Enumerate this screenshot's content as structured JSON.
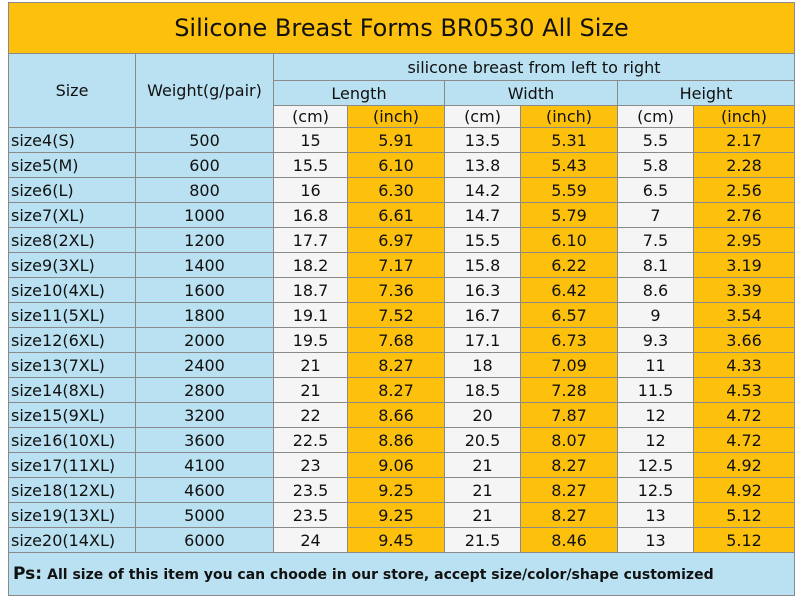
{
  "title": "Silicone Breast Forms BR0530 All Size",
  "header": {
    "size": "Size",
    "weight": "Weight(g/pair)",
    "group": "silicone breast from left to right",
    "dimensions": [
      "Length",
      "Width",
      "Height"
    ],
    "units": [
      "(cm)",
      "(inch)",
      "(cm)",
      "(inch)",
      "(cm)",
      "(inch)"
    ]
  },
  "table": {
    "rows": [
      [
        "size4(S)",
        "500",
        "15",
        "5.91",
        "13.5",
        "5.31",
        "5.5",
        "2.17"
      ],
      [
        "size5(M)",
        "600",
        "15.5",
        "6.10",
        "13.8",
        "5.43",
        "5.8",
        "2.28"
      ],
      [
        "size6(L)",
        "800",
        "16",
        "6.30",
        "14.2",
        "5.59",
        "6.5",
        "2.56"
      ],
      [
        "size7(XL)",
        "1000",
        "16.8",
        "6.61",
        "14.7",
        "5.79",
        "7",
        "2.76"
      ],
      [
        "size8(2XL)",
        "1200",
        "17.7",
        "6.97",
        "15.5",
        "6.10",
        "7.5",
        "2.95"
      ],
      [
        "size9(3XL)",
        "1400",
        "18.2",
        "7.17",
        "15.8",
        "6.22",
        "8.1",
        "3.19"
      ],
      [
        "size10(4XL)",
        "1600",
        "18.7",
        "7.36",
        "16.3",
        "6.42",
        "8.6",
        "3.39"
      ],
      [
        "size11(5XL)",
        "1800",
        "19.1",
        "7.52",
        "16.7",
        "6.57",
        "9",
        "3.54"
      ],
      [
        "size12(6XL)",
        "2000",
        "19.5",
        "7.68",
        "17.1",
        "6.73",
        "9.3",
        "3.66"
      ],
      [
        "size13(7XL)",
        "2400",
        "21",
        "8.27",
        "18",
        "7.09",
        "11",
        "4.33"
      ],
      [
        "size14(8XL)",
        "2800",
        "21",
        "8.27",
        "18.5",
        "7.28",
        "11.5",
        "4.53"
      ],
      [
        "size15(9XL)",
        "3200",
        "22",
        "8.66",
        "20",
        "7.87",
        "12",
        "4.72"
      ],
      [
        "size16(10XL)",
        "3600",
        "22.5",
        "8.86",
        "20.5",
        "8.07",
        "12",
        "4.72"
      ],
      [
        "size17(11XL)",
        "4100",
        "23",
        "9.06",
        "21",
        "8.27",
        "12.5",
        "4.92"
      ],
      [
        "size18(12XL)",
        "4600",
        "23.5",
        "9.25",
        "21",
        "8.27",
        "12.5",
        "4.92"
      ],
      [
        "size19(13XL)",
        "5000",
        "23.5",
        "9.25",
        "21",
        "8.27",
        "13",
        "5.12"
      ],
      [
        "size20(14XL)",
        "6000",
        "24",
        "9.45",
        "21.5",
        "8.46",
        "13",
        "5.12"
      ]
    ]
  },
  "footer": {
    "label": "Ps:",
    "text": "All size of this item you can choode in our store, accept size/color/shape customized"
  }
}
